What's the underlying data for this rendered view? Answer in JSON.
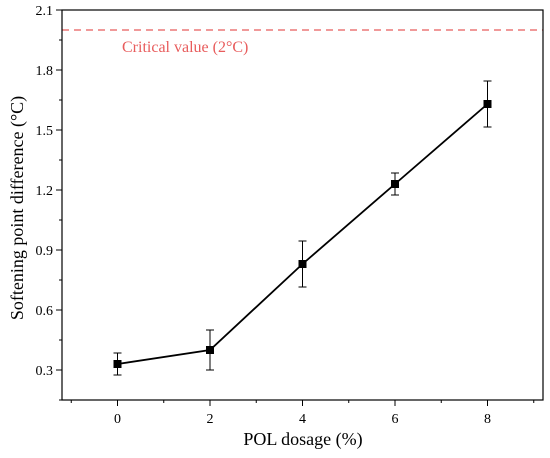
{
  "chart_data": {
    "type": "line",
    "xlabel": "POL dosage (%)",
    "ylabel": "Softening point difference (°C)",
    "xlim": [
      -1.2,
      9.2
    ],
    "ylim": [
      0.15,
      2.1
    ],
    "x_ticks": [
      0,
      2,
      4,
      6,
      8
    ],
    "x_tick_labels": [
      "0",
      "2",
      "4",
      "6",
      "8"
    ],
    "y_ticks": [
      0.3,
      0.6,
      0.9,
      1.2,
      1.5,
      1.8,
      2.1
    ],
    "y_tick_labels": [
      "0.3",
      "0.6",
      "0.9",
      "1.2",
      "1.5",
      "1.8",
      "2.1"
    ],
    "grid": false,
    "series": [
      {
        "x": [
          0,
          2,
          4,
          6,
          8
        ],
        "y": [
          0.33,
          0.4,
          0.83,
          1.23,
          1.63
        ],
        "error": [
          0.055,
          0.1,
          0.115,
          0.055,
          0.115
        ],
        "marker": "square",
        "color": "#000000"
      }
    ],
    "reference_line": {
      "y": 2.0,
      "label": "Critical value (2°C)",
      "color": "#e85c5c",
      "style": "dashed"
    }
  }
}
